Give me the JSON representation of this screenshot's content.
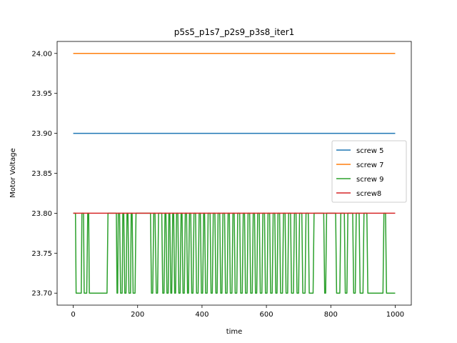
{
  "chart_data": {
    "type": "line",
    "title": "p5s5_p1s7_p2s9_p3s8_iter1",
    "xlabel": "time",
    "ylabel": "Motor Voltage",
    "xlim": [
      -50,
      1050
    ],
    "ylim": [
      23.685,
      24.015
    ],
    "x_ticks": [
      0,
      200,
      400,
      600,
      800,
      1000
    ],
    "y_ticks": [
      23.7,
      23.75,
      23.8,
      23.85,
      23.9,
      23.95,
      24.0
    ],
    "x_tick_labels": [
      "0",
      "200",
      "400",
      "600",
      "800",
      "1000"
    ],
    "y_tick_labels": [
      "23.70",
      "23.75",
      "23.80",
      "23.85",
      "23.90",
      "23.95",
      "24.00"
    ],
    "grid": false,
    "legend_placement": "center-right",
    "series": [
      {
        "name": "screw 5",
        "color": "#1f77b4",
        "x": [
          0,
          1000
        ],
        "y": [
          23.9,
          23.9
        ]
      },
      {
        "name": "screw 7",
        "color": "#ff7f0e",
        "x": [
          0,
          1000
        ],
        "y": [
          24.0,
          24.0
        ]
      },
      {
        "name": "screw 9",
        "color": "#2ca02c",
        "x": [
          0,
          7,
          9,
          25,
          27,
          32,
          34,
          42,
          45,
          48,
          50,
          105,
          108,
          134,
          136,
          138,
          140,
          144,
          147,
          152,
          154,
          157,
          160,
          164,
          167,
          170,
          173,
          178,
          180,
          183,
          186,
          192,
          195,
          240,
          243,
          247,
          250,
          254,
          258,
          262,
          265,
          275,
          278,
          282,
          285,
          288,
          291,
          295,
          297,
          300,
          303,
          306,
          309,
          312,
          315,
          318,
          321,
          325,
          328,
          332,
          335,
          338,
          341,
          345,
          348,
          352,
          355,
          358,
          361,
          365,
          368,
          372,
          375,
          380,
          383,
          388,
          391,
          395,
          398,
          402,
          405,
          408,
          411,
          416,
          419,
          425,
          428,
          432,
          435,
          440,
          443,
          447,
          450,
          455,
          458,
          462,
          465,
          470,
          473,
          478,
          481,
          485,
          488,
          493,
          496,
          500,
          503,
          508,
          511,
          517,
          520,
          525,
          528,
          532,
          535,
          540,
          543,
          548,
          551,
          556,
          559,
          563,
          566,
          570,
          573,
          578,
          581,
          586,
          589,
          594,
          597,
          602,
          605,
          610,
          613,
          618,
          621,
          626,
          629,
          633,
          636,
          641,
          644,
          650,
          653,
          658,
          661,
          666,
          669,
          675,
          678,
          684,
          687,
          692,
          695,
          700,
          703,
          710,
          713,
          720,
          723,
          730,
          733,
          745,
          748,
          778,
          781,
          784,
          787,
          815,
          818,
          828,
          831,
          842,
          845,
          850,
          853,
          868,
          871,
          876,
          879,
          888,
          891,
          900,
          903,
          912,
          915,
          962,
          965,
          970,
          973,
          1000
        ],
        "y": [
          23.8,
          23.8,
          23.7,
          23.7,
          23.8,
          23.8,
          23.7,
          23.7,
          23.8,
          23.8,
          23.7,
          23.7,
          23.8,
          23.8,
          23.7,
          23.7,
          23.8,
          23.8,
          23.7,
          23.7,
          23.8,
          23.8,
          23.7,
          23.7,
          23.8,
          23.8,
          23.7,
          23.7,
          23.8,
          23.8,
          23.7,
          23.7,
          23.8,
          23.8,
          23.7,
          23.7,
          23.8,
          23.8,
          23.7,
          23.7,
          23.8,
          23.8,
          23.7,
          23.7,
          23.8,
          23.8,
          23.7,
          23.7,
          23.8,
          23.8,
          23.7,
          23.7,
          23.8,
          23.8,
          23.7,
          23.7,
          23.8,
          23.8,
          23.7,
          23.7,
          23.8,
          23.8,
          23.7,
          23.7,
          23.8,
          23.8,
          23.7,
          23.7,
          23.8,
          23.8,
          23.7,
          23.7,
          23.8,
          23.8,
          23.7,
          23.7,
          23.8,
          23.8,
          23.7,
          23.7,
          23.8,
          23.8,
          23.7,
          23.7,
          23.8,
          23.8,
          23.7,
          23.7,
          23.8,
          23.8,
          23.7,
          23.7,
          23.8,
          23.8,
          23.7,
          23.7,
          23.8,
          23.8,
          23.7,
          23.7,
          23.8,
          23.8,
          23.7,
          23.7,
          23.8,
          23.8,
          23.7,
          23.7,
          23.8,
          23.8,
          23.7,
          23.7,
          23.8,
          23.8,
          23.7,
          23.7,
          23.8,
          23.8,
          23.7,
          23.7,
          23.8,
          23.8,
          23.7,
          23.7,
          23.8,
          23.8,
          23.7,
          23.7,
          23.8,
          23.8,
          23.7,
          23.7,
          23.8,
          23.8,
          23.7,
          23.7,
          23.8,
          23.8,
          23.7,
          23.7,
          23.8,
          23.8,
          23.7,
          23.7,
          23.8,
          23.8,
          23.7,
          23.7,
          23.8,
          23.8,
          23.7,
          23.7,
          23.8,
          23.8,
          23.7,
          23.7,
          23.8,
          23.8,
          23.7,
          23.7,
          23.8,
          23.8,
          23.7,
          23.7,
          23.8,
          23.8,
          23.7,
          23.7,
          23.8,
          23.8,
          23.7,
          23.7,
          23.8,
          23.8,
          23.7,
          23.7,
          23.8,
          23.8,
          23.7,
          23.7,
          23.8,
          23.8,
          23.7,
          23.7,
          23.8,
          23.8,
          23.7,
          23.7,
          23.8,
          23.8,
          23.7,
          23.7
        ]
      },
      {
        "name": "screw8",
        "color": "#d62728",
        "x": [
          0,
          1000
        ],
        "y": [
          23.8,
          23.8
        ]
      }
    ]
  }
}
